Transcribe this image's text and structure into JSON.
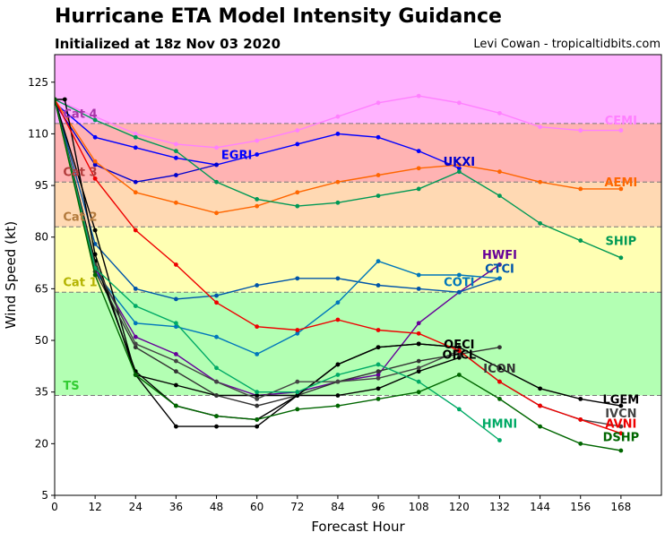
{
  "header": {
    "title": "Hurricane ETA Model Intensity Guidance",
    "subtitle": "Initialized at 18z Nov 03 2020",
    "credit": "Levi Cowan - tropicaltidbits.com"
  },
  "chart_data": {
    "type": "line",
    "title": "Hurricane ETA Model Intensity Guidance",
    "subtitle": "Initialized at 18z Nov 03 2020",
    "xlabel": "Forecast Hour",
    "ylabel": "Wind Speed (kt)",
    "xlim": [
      0,
      180
    ],
    "ylim": [
      5,
      133
    ],
    "xticks": [
      0,
      12,
      24,
      36,
      48,
      60,
      72,
      84,
      96,
      108,
      120,
      132,
      144,
      156,
      168
    ],
    "yticks": [
      5,
      20,
      35,
      50,
      65,
      80,
      95,
      110,
      125
    ],
    "grid": false,
    "bands": [
      {
        "label": "TS",
        "from": 34,
        "to": 64,
        "color": "#b3ffb3",
        "label_color": "#33cc33",
        "label_y": 37
      },
      {
        "label": "Cat 1",
        "from": 64,
        "to": 83,
        "color": "#ffffb3",
        "label_color": "#b3b300",
        "label_y": 67
      },
      {
        "label": "Cat 2",
        "from": 83,
        "to": 96,
        "color": "#ffd9b3",
        "label_color": "#b37a3d",
        "label_y": 86
      },
      {
        "label": "Cat 3",
        "from": 96,
        "to": 113,
        "color": "#ffb3b3",
        "label_color": "#b33c3c",
        "label_y": 99
      },
      {
        "label": "Cat 4",
        "from": 113,
        "to": 137,
        "color": "#ffb3ff",
        "label_color": "#a834a8",
        "label_y": 116
      }
    ],
    "series": [
      {
        "name": "CEMI",
        "color": "#ff80ff",
        "label_y": 114,
        "x": [
          0,
          12,
          24,
          36,
          48,
          60,
          72,
          84,
          96,
          108,
          120,
          132,
          144,
          156,
          168
        ],
        "y": [
          120,
          115,
          110,
          107,
          106,
          108,
          111,
          115,
          119,
          121,
          119,
          116,
          112,
          111,
          111
        ]
      },
      {
        "name": "EGRI",
        "color": "#0000ff",
        "label_x": 54,
        "label_y": 104,
        "x": [
          0,
          12,
          24,
          36,
          48,
          60,
          72,
          84,
          96,
          108,
          120
        ],
        "y": [
          119,
          109,
          106,
          103,
          101,
          104,
          107,
          110,
          109,
          105,
          100
        ]
      },
      {
        "name": "UKXI",
        "color": "#0000cc",
        "label_x": 120,
        "label_y": 102,
        "x": [
          0,
          12,
          24,
          36,
          48
        ],
        "y": [
          119,
          101,
          96,
          98,
          101
        ]
      },
      {
        "name": "AEMI",
        "color": "#ff6600",
        "label_y": 96,
        "x": [
          0,
          12,
          24,
          36,
          48,
          60,
          72,
          84,
          96,
          108,
          120,
          132,
          144,
          156,
          168
        ],
        "y": [
          120,
          102,
          93,
          90,
          87,
          89,
          93,
          96,
          98,
          100,
          101,
          99,
          96,
          94,
          94
        ]
      },
      {
        "name": "SHIP",
        "color": "#009955",
        "label_y": 79,
        "x": [
          0,
          12,
          24,
          36,
          48,
          60,
          72,
          84,
          96,
          108,
          120,
          132,
          144,
          156,
          168
        ],
        "y": [
          120,
          114,
          109,
          105,
          96,
          91,
          89,
          90,
          92,
          94,
          99,
          92,
          84,
          79,
          74
        ]
      },
      {
        "name": "HWFI",
        "color": "#660099",
        "label_y": 75,
        "x": [
          0,
          12,
          24,
          36,
          48,
          60,
          72,
          84,
          96,
          108,
          120,
          132
        ],
        "y": [
          120,
          71,
          51,
          46,
          38,
          34,
          35,
          38,
          40,
          55,
          64,
          72
        ]
      },
      {
        "name": "CTCI",
        "color": "#0055aa",
        "label_y": 71,
        "x": [
          0,
          12,
          24,
          36,
          48,
          60,
          72,
          84,
          96,
          108,
          120,
          132
        ],
        "y": [
          120,
          78,
          65,
          62,
          63,
          66,
          68,
          68,
          66,
          65,
          64,
          68
        ]
      },
      {
        "name": "COTI",
        "color": "#0077bb",
        "label_x": 120,
        "label_y": 67,
        "x": [
          0,
          12,
          24,
          36,
          48,
          60,
          72,
          84,
          96,
          108,
          120,
          132
        ],
        "y": [
          120,
          70,
          55,
          54,
          51,
          46,
          52,
          61,
          73,
          69,
          69,
          68
        ]
      },
      {
        "name": "OFCI",
        "color": "#000000",
        "label_x": 120,
        "label_y": 49,
        "x": [
          0,
          12,
          24,
          36,
          48,
          60,
          72,
          84,
          96,
          108,
          120
        ],
        "y": [
          120,
          82,
          40,
          37,
          34,
          34,
          34,
          43,
          48,
          49,
          48
        ]
      },
      {
        "name": "OFCL",
        "color": "#000000",
        "label_x": 120,
        "label_y": 46,
        "x": [
          0,
          3,
          12,
          24,
          36,
          48,
          60,
          72,
          84,
          96,
          108,
          120
        ],
        "y": [
          120,
          120,
          75,
          40,
          25,
          25,
          25,
          34,
          34,
          36,
          41,
          45
        ]
      },
      {
        "name": "ICON",
        "color": "#333333",
        "label_y": 42,
        "x": [
          0,
          12,
          24,
          36,
          48,
          60,
          72,
          84,
          96,
          108,
          120,
          132
        ],
        "y": [
          120,
          70,
          48,
          41,
          34,
          31,
          34,
          38,
          41,
          44,
          46,
          48
        ]
      },
      {
        "name": "LGEM",
        "color": "#000000",
        "label_y": 33,
        "x": [
          0,
          12,
          24,
          36,
          48,
          60,
          72,
          84,
          96,
          108,
          120,
          132,
          144,
          156,
          168
        ],
        "y": [
          120,
          73,
          41,
          31,
          28,
          27,
          34,
          43,
          48,
          49,
          48,
          42,
          36,
          33,
          31
        ]
      },
      {
        "name": "IVCN",
        "color": "#444444",
        "label_y": 29,
        "x": [
          0,
          12,
          24,
          36,
          48,
          60,
          72,
          84,
          96,
          108,
          120,
          132,
          144,
          156,
          168
        ],
        "y": [
          120,
          72,
          49,
          44,
          38,
          33,
          38,
          38,
          39,
          42,
          47,
          38,
          31,
          27,
          25
        ]
      },
      {
        "name": "AVNI",
        "color": "#ee0000",
        "label_y": 26,
        "x": [
          0,
          12,
          24,
          36,
          48,
          60,
          72,
          84,
          96,
          108,
          120,
          132,
          144,
          156,
          168
        ],
        "y": [
          120,
          97,
          82,
          72,
          61,
          54,
          53,
          56,
          53,
          52,
          47,
          38,
          31,
          27,
          23
        ]
      },
      {
        "name": "HMNI",
        "color": "#00aa66",
        "label_y": 26,
        "x": [
          0,
          12,
          24,
          36,
          48,
          60,
          72,
          84,
          96,
          108,
          120,
          132
        ],
        "y": [
          120,
          71,
          60,
          55,
          42,
          35,
          35,
          40,
          43,
          38,
          30,
          21
        ]
      },
      {
        "name": "DSHP",
        "color": "#006600",
        "label_y": 22,
        "x": [
          0,
          12,
          24,
          36,
          48,
          60,
          72,
          84,
          96,
          108,
          120,
          132,
          144,
          156,
          168
        ],
        "y": [
          120,
          69,
          40,
          31,
          28,
          27,
          30,
          31,
          33,
          35,
          40,
          33,
          25,
          20,
          18
        ]
      }
    ]
  }
}
